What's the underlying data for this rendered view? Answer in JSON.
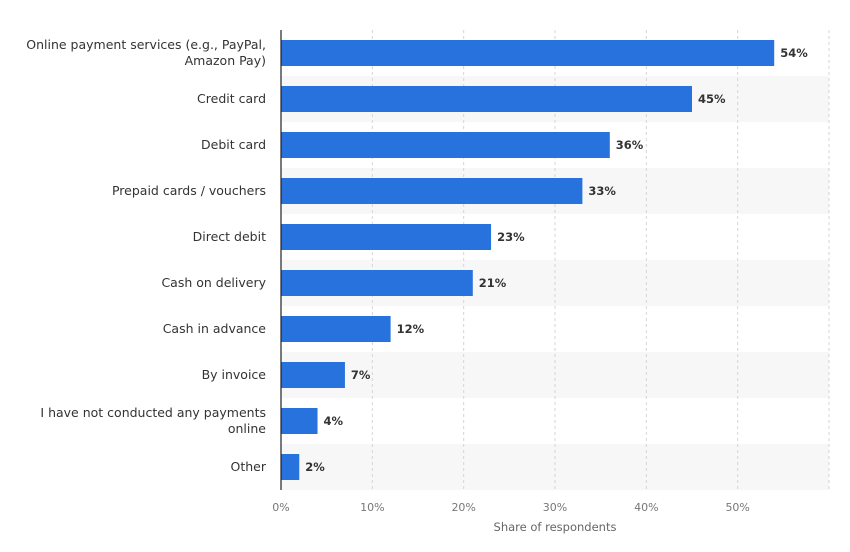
{
  "chart_data": {
    "type": "bar",
    "orientation": "horizontal",
    "categories": [
      "Online payment services (e.g., PayPal, Amazon Pay)",
      "Credit card",
      "Debit card",
      "Prepaid cards / vouchers",
      "Direct debit",
      "Cash on delivery",
      "Cash in advance",
      "By invoice",
      "I have not conducted any payments online",
      "Other"
    ],
    "category_lines": [
      [
        "Online payment services (e.g., PayPal,",
        "Amazon Pay)"
      ],
      [
        "Credit card"
      ],
      [
        "Debit card"
      ],
      [
        "Prepaid cards / vouchers"
      ],
      [
        "Direct debit"
      ],
      [
        "Cash on delivery"
      ],
      [
        "Cash in advance"
      ],
      [
        "By invoice"
      ],
      [
        "I have not conducted any payments",
        "online"
      ],
      [
        "Other"
      ]
    ],
    "values": [
      54,
      45,
      36,
      33,
      23,
      21,
      12,
      7,
      4,
      2
    ],
    "value_labels": [
      "54%",
      "45%",
      "36%",
      "33%",
      "23%",
      "21%",
      "12%",
      "7%",
      "4%",
      "2%"
    ],
    "xlabel": "Share of respondents",
    "ylabel": "",
    "xlim": [
      0,
      60
    ],
    "ticks": [
      0,
      10,
      20,
      30,
      40,
      50
    ],
    "tick_labels": [
      "0%",
      "10%",
      "20%",
      "30%",
      "40%",
      "50%"
    ],
    "grid": true,
    "bar_color": "#2872dd",
    "stripe_color": "#f7f7f7"
  }
}
